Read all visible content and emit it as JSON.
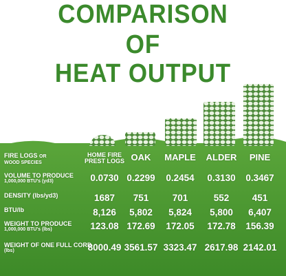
{
  "title": [
    "COMPARISON",
    "OF",
    "HEAT OUTPUT"
  ],
  "table": {
    "header": {
      "label": [
        "FIRE LOGS",
        "OR",
        "WOOD SPECIES"
      ],
      "columns": [
        [
          "HOME FIRE",
          "PREST LOGS"
        ],
        [
          "OAK"
        ],
        [
          "MAPLE"
        ],
        [
          "ALDER"
        ],
        [
          "PINE"
        ]
      ]
    },
    "rows": [
      {
        "label": [
          "VOLUME TO PRODUCE",
          "1,000,000 BTU's (yd3)"
        ],
        "cells": [
          "0.0730",
          "0.2299",
          "0.2454",
          "0.3130",
          "0.3467"
        ]
      },
      {
        "label": [
          "DENSITY (lbs/yd3)"
        ],
        "cells": [
          "1687",
          "751",
          "701",
          "552",
          "451"
        ]
      },
      {
        "label": [
          "BTU/lb"
        ],
        "cells": [
          "8,126",
          "5,802",
          "5,824",
          "5,800",
          "6,407"
        ]
      },
      {
        "label": [
          "WEIGHT TO PRODUCE",
          "1,000,000 BTU's (lbs)"
        ],
        "cells": [
          "123.08",
          "172.69",
          "172.05",
          "172.78",
          "156.39"
        ]
      },
      {
        "label": [
          "WEIGHT OF ONE FULL CORD",
          "(lbs)"
        ],
        "cells": [
          "8000.49",
          "3561.57",
          "3323.47",
          "2617.98",
          "2142.01"
        ]
      }
    ]
  }
}
